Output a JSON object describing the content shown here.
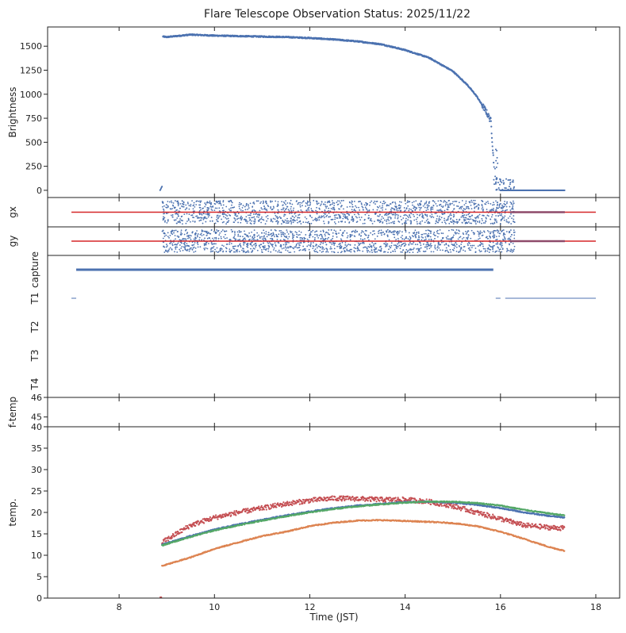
{
  "title": "Flare Telescope Observation Status: 2025/11/22",
  "xlabel": "Time (JST)",
  "xlim": [
    6.5,
    18.5
  ],
  "xticks": [
    8,
    10,
    12,
    14,
    16,
    18
  ],
  "colors": {
    "blue": "#4c72b0",
    "orange": "#dd8452",
    "green": "#55a868",
    "red": "#c44e52",
    "line_red": "#d62728"
  },
  "chart_data": [
    {
      "id": "brightness",
      "type": "scatter",
      "ylabel": "Brightness",
      "ylim": [
        -75,
        1700
      ],
      "yticks": [
        0,
        250,
        500,
        750,
        1000,
        1250,
        1500
      ],
      "series": [
        {
          "name": "brightness",
          "color": "#4c72b0",
          "x": [
            8.88,
            8.92,
            9.0,
            9.5,
            10.0,
            10.5,
            11.0,
            11.5,
            12.0,
            12.5,
            13.0,
            13.5,
            14.0,
            14.5,
            15.0,
            15.3,
            15.5,
            15.7,
            15.8,
            15.85,
            15.9,
            16.0,
            16.3,
            17.35
          ],
          "y": [
            0,
            1600,
            1595,
            1620,
            1610,
            1605,
            1600,
            1595,
            1585,
            1570,
            1550,
            1520,
            1460,
            1380,
            1240,
            1100,
            980,
            820,
            720,
            350,
            20,
            0,
            0,
            0
          ]
        }
      ]
    },
    {
      "id": "gx",
      "type": "scatter",
      "ylabel": "gx",
      "ylim": [
        -1,
        1
      ],
      "series": [
        {
          "name": "gx",
          "color": "#4c72b0",
          "x_range": [
            8.9,
            16.3
          ],
          "spread": 0.8
        }
      ],
      "reference_lines": [
        {
          "name": "gx-target",
          "color": "#d62728",
          "x": [
            7.0,
            18.0
          ],
          "y": 0
        }
      ]
    },
    {
      "id": "gy",
      "type": "scatter",
      "ylabel": "gy",
      "ylim": [
        -1,
        1
      ],
      "series": [
        {
          "name": "gy",
          "color": "#4c72b0",
          "x_range": [
            8.9,
            16.3
          ],
          "spread": 0.8
        }
      ],
      "reference_lines": [
        {
          "name": "gy-target",
          "color": "#d62728",
          "x": [
            7.0,
            18.0
          ],
          "y": 0
        }
      ]
    },
    {
      "id": "status",
      "type": "line",
      "ylabels": [
        "capture",
        "T1",
        "T2",
        "T3",
        "T4"
      ],
      "segments": [
        {
          "name": "capture",
          "x": [
            7.1,
            15.85
          ],
          "level": 0,
          "color": "#4c72b0"
        },
        {
          "name": "t1-start",
          "x": [
            7.0,
            7.1
          ],
          "level": 1,
          "color": "#4c72b0"
        },
        {
          "name": "t1-mid",
          "x": [
            15.9,
            16.0
          ],
          "level": 1,
          "color": "#4c72b0"
        },
        {
          "name": "t1-end",
          "x": [
            16.1,
            18.0
          ],
          "level": 1,
          "color": "#4c72b0"
        }
      ]
    },
    {
      "id": "ftemp",
      "type": "scatter",
      "ylabel": "f-temp",
      "ylim": [
        44.5,
        46
      ],
      "yticks": [
        45,
        46
      ],
      "series": []
    },
    {
      "id": "temp",
      "type": "scatter",
      "ylabel": "temp.",
      "ylim": [
        0,
        40
      ],
      "yticks": [
        0,
        5,
        10,
        15,
        20,
        25,
        30,
        35,
        40
      ],
      "series": [
        {
          "name": "temp-red",
          "color": "#c44e52",
          "x": [
            8.9,
            9.5,
            10.0,
            10.5,
            11.0,
            11.5,
            12.0,
            12.5,
            13.0,
            13.5,
            14.0,
            14.5,
            15.0,
            15.5,
            16.0,
            16.5,
            17.0,
            17.35
          ],
          "y": [
            13,
            17,
            18.8,
            20,
            21,
            22,
            22.8,
            23.3,
            23.2,
            23,
            23,
            22.5,
            21.5,
            20,
            18.5,
            17,
            16.5,
            16.3
          ]
        },
        {
          "name": "temp-blue",
          "color": "#4c72b0",
          "x": [
            8.9,
            9.5,
            10.0,
            10.5,
            11.0,
            11.5,
            12.0,
            12.5,
            13.0,
            13.5,
            14.0,
            14.5,
            15.0,
            15.5,
            16.0,
            16.5,
            17.0,
            17.35
          ],
          "y": [
            12.5,
            14.5,
            16,
            17.2,
            18.3,
            19.3,
            20.2,
            21,
            21.6,
            22,
            22.4,
            22.5,
            22.3,
            21.8,
            21,
            20,
            19.2,
            18.8
          ]
        },
        {
          "name": "temp-green",
          "color": "#55a868",
          "x": [
            8.9,
            9.5,
            10.0,
            10.5,
            11.0,
            11.5,
            12.0,
            12.5,
            13.0,
            13.5,
            14.0,
            14.5,
            15.0,
            15.5,
            16.0,
            16.5,
            17.0,
            17.35
          ],
          "y": [
            12.3,
            14.3,
            15.8,
            17,
            18.1,
            19.1,
            20,
            20.8,
            21.4,
            21.9,
            22.3,
            22.5,
            22.5,
            22.2,
            21.6,
            20.6,
            19.8,
            19.3
          ]
        },
        {
          "name": "temp-orange",
          "color": "#dd8452",
          "x": [
            8.9,
            9.5,
            10.0,
            10.5,
            11.0,
            11.5,
            12.0,
            12.5,
            13.0,
            13.5,
            14.0,
            14.5,
            15.0,
            15.5,
            16.0,
            16.5,
            17.0,
            17.35
          ],
          "y": [
            7.5,
            9.5,
            11.5,
            13,
            14.5,
            15.5,
            16.8,
            17.6,
            18.1,
            18.2,
            18,
            17.8,
            17.5,
            16.8,
            15.5,
            13.8,
            12,
            11
          ]
        },
        {
          "name": "temp-red-dot",
          "color": "#c44e52",
          "x": [
            8.85,
            8.9
          ],
          "y": [
            0,
            0
          ]
        }
      ]
    }
  ]
}
